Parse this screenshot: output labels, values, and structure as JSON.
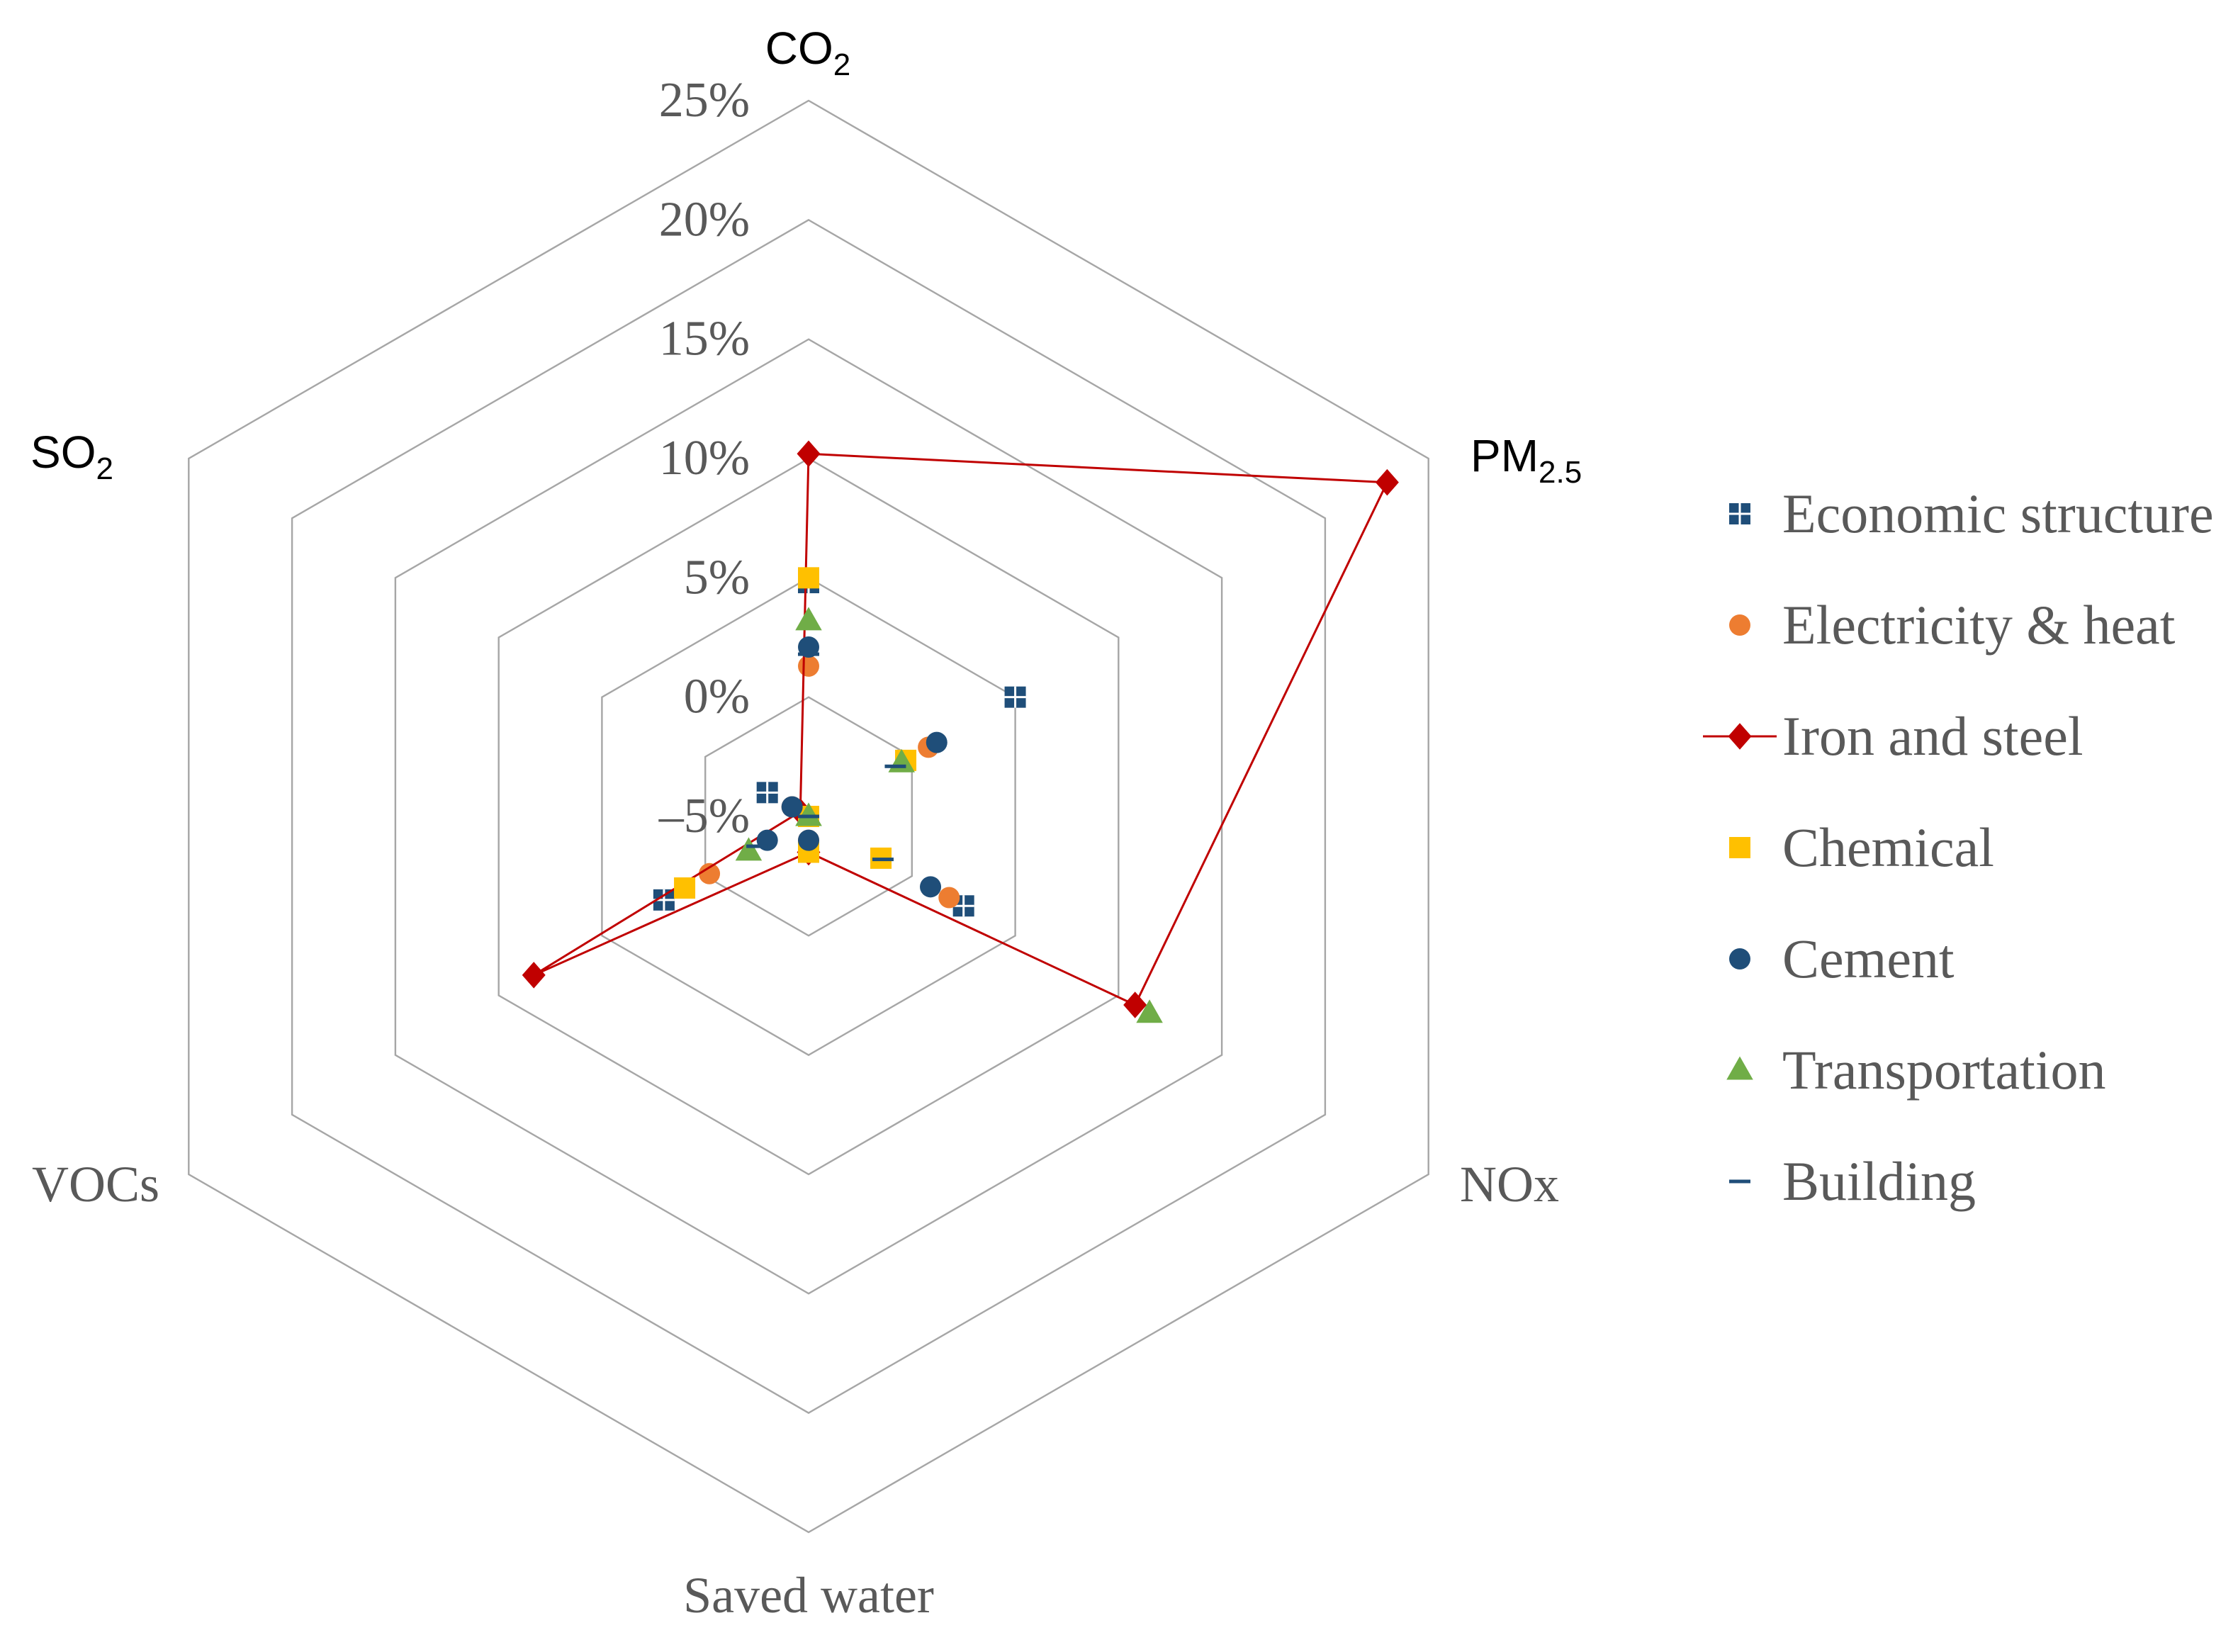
{
  "chart_data": {
    "type": "radar",
    "axes": [
      {
        "label": "CO",
        "sub": "2",
        "style": "sans"
      },
      {
        "label": "PM",
        "sub": "2.5",
        "style": "sans"
      },
      {
        "label": "NOx",
        "sub": "",
        "style": "serif"
      },
      {
        "label": "Saved water",
        "sub": "",
        "style": "serif"
      },
      {
        "label": "VOCs",
        "sub": "",
        "style": "serif"
      },
      {
        "label": "SO",
        "sub": "2",
        "style": "sans"
      }
    ],
    "rings": [
      -5,
      0,
      5,
      10,
      15,
      20,
      25
    ],
    "ring_labels": [
      "–5%",
      "0%",
      "5%",
      "10%",
      "15%",
      "20%",
      "25%"
    ],
    "rlim": [
      -5,
      25
    ],
    "series": [
      {
        "name": "Economic structure",
        "marker": "square-cross",
        "color": "#1f4e79",
        "line": false,
        "values": [
          4.8,
          5.0,
          2.5,
          -3.5,
          2.0,
          -3.0
        ]
      },
      {
        "name": "Electricity & heat",
        "marker": "circle",
        "color": "#ed7d31",
        "line": false,
        "values": [
          1.3,
          0.8,
          1.8,
          -4.0,
          -0.2,
          -4.2
        ]
      },
      {
        "name": "Iron and steel",
        "marker": "diamond",
        "color": "#c00000",
        "line": true,
        "values": [
          10.2,
          23.0,
          10.8,
          -3.5,
          8.3,
          -4.6
        ]
      },
      {
        "name": "Chemical",
        "marker": "square",
        "color": "#ffc000",
        "line": false,
        "values": [
          5.0,
          -0.3,
          -1.5,
          -3.5,
          1.0,
          -5.0
        ]
      },
      {
        "name": "Cement",
        "marker": "circle",
        "color": "#1f4e79",
        "line": false,
        "values": [
          2.1,
          1.2,
          0.9,
          -4.0,
          -3.0,
          -4.2
        ]
      },
      {
        "name": "Transportation",
        "marker": "triangle",
        "color": "#70ad47",
        "line": false,
        "values": [
          3.2,
          -0.5,
          11.5,
          -5.0,
          -2.1,
          -5.0
        ]
      },
      {
        "name": "Building",
        "marker": "dash",
        "color": "#1f4e79",
        "line": false,
        "values": [
          1.8,
          -0.8,
          -1.4,
          -5.0,
          -2.5,
          -5.0
        ]
      }
    ],
    "legend_position": "right"
  }
}
